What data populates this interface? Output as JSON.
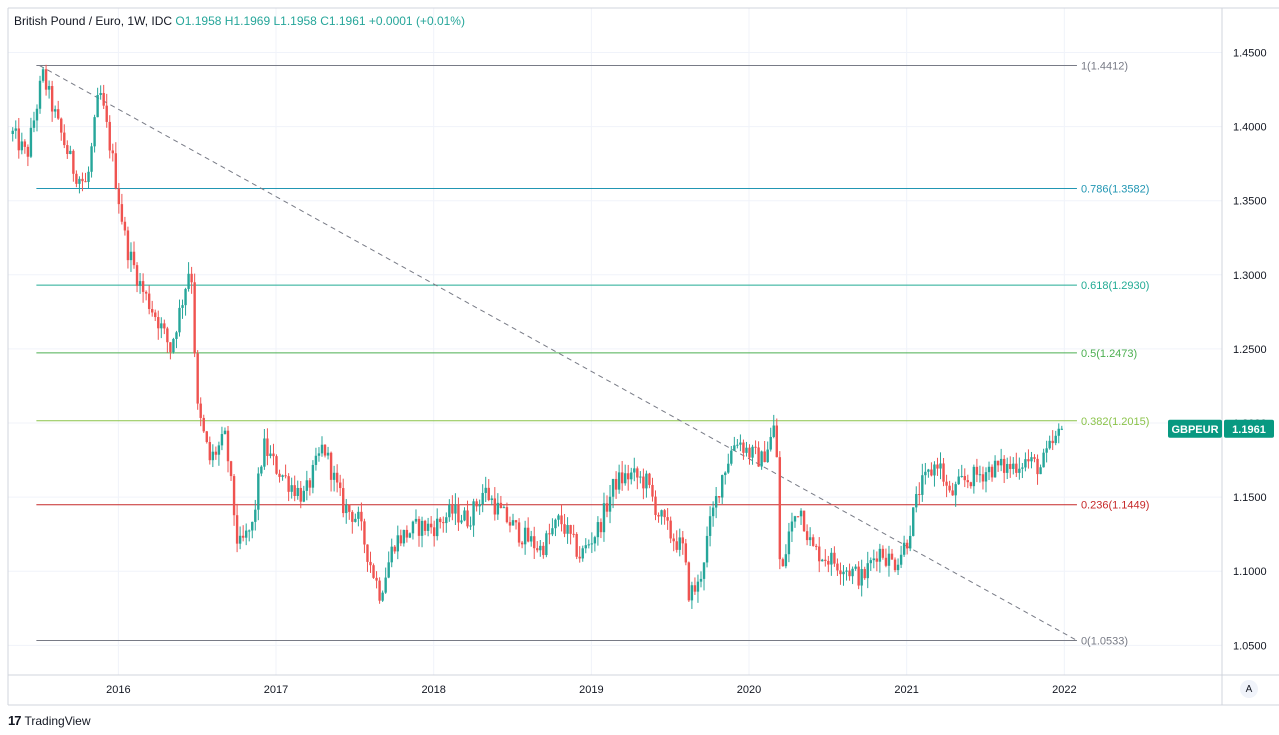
{
  "header": {
    "title": "British Pound / Euro, 1W, IDC",
    "ohlc": "O1.1958 H1.1969 L1.1958 C1.1961 +0.0001 (+0.01%)"
  },
  "footer": {
    "brand": "TradingView",
    "logo": "17"
  },
  "auto_button": "A",
  "colors": {
    "up": "#26a69a",
    "down": "#ef5350",
    "price_tag": "#089981",
    "trend": "#787b86"
  },
  "chart_data": {
    "type": "candlestick",
    "title": "British Pound / Euro, 1W, IDC",
    "symbol": "GBPEUR",
    "last_price": 1.1961,
    "last_price_label": "1.1961",
    "y_axis": {
      "min": 1.03,
      "max": 1.48,
      "ticks": [
        1.05,
        1.1,
        1.15,
        1.2,
        1.25,
        1.3,
        1.35,
        1.4,
        1.45
      ],
      "tick_labels": [
        "1.0500",
        "1.1000",
        "1.1500",
        "1.2000",
        "1.2500",
        "1.3000",
        "1.3500",
        "1.4000",
        "1.4500"
      ]
    },
    "x_axis": {
      "start": 2015.3,
      "end": 2023.0,
      "ticks": [
        2016,
        2017,
        2018,
        2019,
        2020,
        2021,
        2022
      ],
      "tick_labels": [
        "2016",
        "2017",
        "2018",
        "2019",
        "2020",
        "2021",
        "2022"
      ]
    },
    "plot_range": {
      "start": 2015.33,
      "end": 2022.0
    },
    "fib_start": 2015.48,
    "fib_end": 2022.08,
    "fib_levels": [
      {
        "ratio": "1",
        "value": 1.4412,
        "label": "1(1.4412)",
        "color": "#787b86"
      },
      {
        "ratio": "0.786",
        "value": 1.3582,
        "label": "0.786(1.3582)",
        "color": "#2196b3"
      },
      {
        "ratio": "0.618",
        "value": 1.293,
        "label": "0.618(1.2930)",
        "color": "#22ab94"
      },
      {
        "ratio": "0.5",
        "value": 1.2473,
        "label": "0.5(1.2473)",
        "color": "#4caf50"
      },
      {
        "ratio": "0.382",
        "value": 1.2015,
        "label": "0.382(1.2015)",
        "color": "#8bc34a"
      },
      {
        "ratio": "0.236",
        "value": 1.1449,
        "label": "0.236(1.1449)",
        "color": "#c62828"
      },
      {
        "ratio": "0",
        "value": 1.0533,
        "label": "0(1.0533)",
        "color": "#787b86"
      }
    ],
    "trendline": {
      "x1": 2015.5,
      "y1": 1.4412,
      "x2": 2022.08,
      "y2": 1.0533
    },
    "anchors": [
      [
        2015.33,
        1.395
      ],
      [
        2015.42,
        1.38
      ],
      [
        2015.52,
        1.435
      ],
      [
        2015.62,
        1.4
      ],
      [
        2015.72,
        1.37
      ],
      [
        2015.8,
        1.36
      ],
      [
        2015.88,
        1.425
      ],
      [
        2015.96,
        1.38
      ],
      [
        2016.05,
        1.32
      ],
      [
        2016.15,
        1.29
      ],
      [
        2016.25,
        1.27
      ],
      [
        2016.33,
        1.25
      ],
      [
        2016.4,
        1.28
      ],
      [
        2016.46,
        1.31
      ],
      [
        2016.5,
        1.21
      ],
      [
        2016.58,
        1.175
      ],
      [
        2016.68,
        1.19
      ],
      [
        2016.76,
        1.115
      ],
      [
        2016.85,
        1.13
      ],
      [
        2016.92,
        1.185
      ],
      [
        2017.0,
        1.17
      ],
      [
        2017.08,
        1.16
      ],
      [
        2017.18,
        1.15
      ],
      [
        2017.3,
        1.185
      ],
      [
        2017.42,
        1.145
      ],
      [
        2017.52,
        1.135
      ],
      [
        2017.6,
        1.105
      ],
      [
        2017.66,
        1.085
      ],
      [
        2017.75,
        1.12
      ],
      [
        2017.9,
        1.13
      ],
      [
        2018.0,
        1.13
      ],
      [
        2018.12,
        1.14
      ],
      [
        2018.22,
        1.135
      ],
      [
        2018.32,
        1.155
      ],
      [
        2018.42,
        1.14
      ],
      [
        2018.55,
        1.125
      ],
      [
        2018.68,
        1.115
      ],
      [
        2018.8,
        1.135
      ],
      [
        2018.93,
        1.11
      ],
      [
        2019.05,
        1.13
      ],
      [
        2019.15,
        1.16
      ],
      [
        2019.25,
        1.165
      ],
      [
        2019.35,
        1.16
      ],
      [
        2019.42,
        1.14
      ],
      [
        2019.5,
        1.125
      ],
      [
        2019.58,
        1.115
      ],
      [
        2019.62,
        1.085
      ],
      [
        2019.68,
        1.09
      ],
      [
        2019.75,
        1.13
      ],
      [
        2019.83,
        1.165
      ],
      [
        2019.92,
        1.19
      ],
      [
        2020.0,
        1.18
      ],
      [
        2020.08,
        1.175
      ],
      [
        2020.14,
        1.19
      ],
      [
        2020.17,
        1.2
      ],
      [
        2020.2,
        1.09
      ],
      [
        2020.25,
        1.125
      ],
      [
        2020.32,
        1.145
      ],
      [
        2020.4,
        1.115
      ],
      [
        2020.48,
        1.11
      ],
      [
        2020.57,
        1.105
      ],
      [
        2020.65,
        1.1
      ],
      [
        2020.72,
        1.095
      ],
      [
        2020.82,
        1.115
      ],
      [
        2020.92,
        1.105
      ],
      [
        2021.0,
        1.12
      ],
      [
        2021.08,
        1.155
      ],
      [
        2021.2,
        1.175
      ],
      [
        2021.27,
        1.15
      ],
      [
        2021.35,
        1.16
      ],
      [
        2021.45,
        1.165
      ],
      [
        2021.55,
        1.17
      ],
      [
        2021.65,
        1.17
      ],
      [
        2021.75,
        1.175
      ],
      [
        2021.85,
        1.17
      ],
      [
        2021.92,
        1.185
      ],
      [
        2022.0,
        1.196
      ]
    ]
  }
}
